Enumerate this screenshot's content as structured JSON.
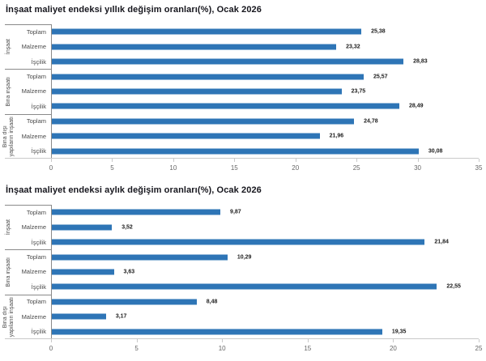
{
  "accent_color": "#2e75b6",
  "chart_data": [
    {
      "type": "bar",
      "orientation": "horizontal",
      "title": "İnşaat maliyet endeksi yıllık değişim oranları(%), Ocak 2026",
      "xlim": [
        0,
        35
      ],
      "xtick_step": 5,
      "xticks": [
        "0",
        "5",
        "10",
        "15",
        "20",
        "25",
        "30",
        "35"
      ],
      "bar_color": "#2e75b6",
      "grid": false,
      "groups": [
        {
          "label": "İnşaat",
          "categories": [
            "Toplam",
            "Malzeme",
            "İşçilik"
          ],
          "values": [
            25.38,
            23.32,
            28.83
          ],
          "value_labels": [
            "25,38",
            "23,32",
            "28,83"
          ]
        },
        {
          "label": "Bina inşaatı",
          "categories": [
            "Toplam",
            "Malzeme",
            "İşçilik"
          ],
          "values": [
            25.57,
            23.75,
            28.49
          ],
          "value_labels": [
            "25,57",
            "23,75",
            "28,49"
          ]
        },
        {
          "label": "Bina dışı\nyapıların inşaatı",
          "categories": [
            "Toplam",
            "Malzeme",
            "İşçilik"
          ],
          "values": [
            24.78,
            21.96,
            30.08
          ],
          "value_labels": [
            "24,78",
            "21,96",
            "30,08"
          ]
        }
      ]
    },
    {
      "type": "bar",
      "orientation": "horizontal",
      "title": "İnşaat maliyet endeksi aylık değişim oranları(%), Ocak 2026",
      "xlim": [
        0,
        25
      ],
      "xtick_step": 5,
      "xticks": [
        "0",
        "5",
        "10",
        "15",
        "20",
        "25"
      ],
      "bar_color": "#2e75b6",
      "grid": false,
      "groups": [
        {
          "label": "İnşaat",
          "categories": [
            "Toplam",
            "Malzeme",
            "İşçilik"
          ],
          "values": [
            9.87,
            3.52,
            21.84
          ],
          "value_labels": [
            "9,87",
            "3,52",
            "21,84"
          ]
        },
        {
          "label": "Bina inşaatı",
          "categories": [
            "Toplam",
            "Malzeme",
            "İşçilik"
          ],
          "values": [
            10.29,
            3.63,
            22.55
          ],
          "value_labels": [
            "10,29",
            "3,63",
            "22,55"
          ]
        },
        {
          "label": "Bina dışı\nyapıların inşaatı",
          "categories": [
            "Toplam",
            "Malzeme",
            "İşçilik"
          ],
          "values": [
            8.48,
            3.17,
            19.35
          ],
          "value_labels": [
            "8,48",
            "3,17",
            "19,35"
          ]
        }
      ]
    }
  ]
}
